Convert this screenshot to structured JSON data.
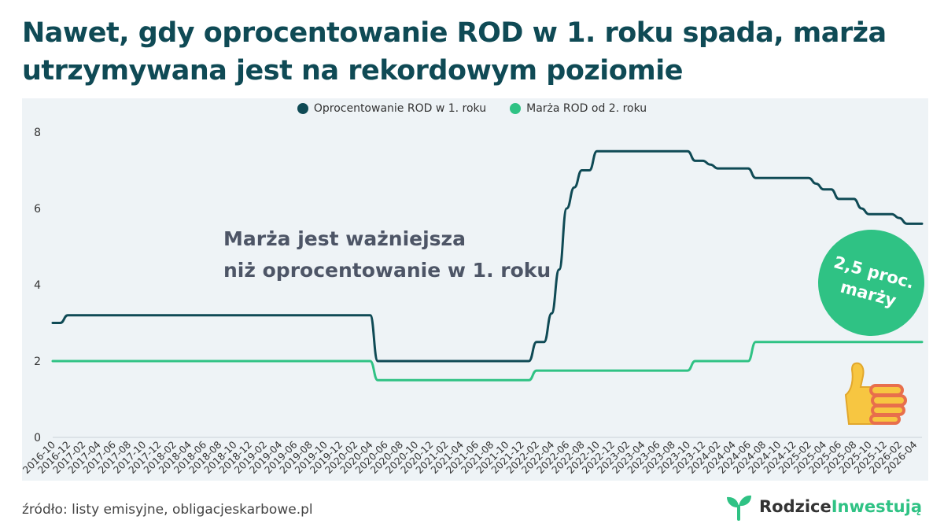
{
  "headline": "Nawet, gdy oprocentowanie ROD w 1. roku spada, marża utrzymywana jest na rekordowym poziomie",
  "annotation_line1": "Marża jest ważniejsza",
  "annotation_line2": "niż oprocentowanie w 1. roku",
  "badge_text": "2,5 proc. marży",
  "source": "źródło: listy emisyjne, obligacjeskarbowe.pl",
  "brand": {
    "part1": "Rodzice",
    "part2": "Inwestują"
  },
  "icons": {
    "thumb": "thumbs-up-icon",
    "logo": "sprout-logo-icon"
  },
  "colors": {
    "rate": "#0f4a55",
    "margin": "#2fc284",
    "panel": "#eef3f6",
    "title": "#0f4a55"
  },
  "chart_data": {
    "type": "line",
    "ylim": [
      0,
      8
    ],
    "yticks": [
      0,
      2,
      4,
      6,
      8
    ],
    "grid": false,
    "legend_position": "top-center",
    "categories": [
      "2016-10",
      "2016-12",
      "2017-02",
      "2017-04",
      "2017-06",
      "2017-08",
      "2017-10",
      "2017-12",
      "2018-02",
      "2018-04",
      "2018-06",
      "2018-08",
      "2018-10",
      "2018-12",
      "2019-02",
      "2019-04",
      "2019-06",
      "2019-08",
      "2019-10",
      "2019-12",
      "2020-02",
      "2020-04",
      "2020-06",
      "2020-08",
      "2020-10",
      "2020-12",
      "2021-02",
      "2021-04",
      "2021-06",
      "2021-08",
      "2021-10",
      "2021-12",
      "2022-02",
      "2022-04",
      "2022-06",
      "2022-08",
      "2022-10",
      "2022-12",
      "2023-02",
      "2023-04",
      "2023-06",
      "2023-08",
      "2023-10",
      "2023-12",
      "2024-02",
      "2024-04",
      "2024-06",
      "2024-08",
      "2024-10",
      "2024-12",
      "2025-02",
      "2025-04",
      "2025-06",
      "2025-08",
      "2025-10",
      "2025-12",
      "2026-02",
      "2026-04"
    ],
    "x_start": "2016-10",
    "x_end": "2026-05",
    "series": [
      {
        "name": "Oprocentowanie ROD w 1. roku",
        "points": [
          [
            "2016-10",
            3.0
          ],
          [
            "2016-11",
            3.0
          ],
          [
            "2016-12",
            3.2
          ],
          [
            "2020-04",
            3.2
          ],
          [
            "2020-05",
            2.0
          ],
          [
            "2022-01",
            2.0
          ],
          [
            "2022-02",
            2.5
          ],
          [
            "2022-03",
            2.5
          ],
          [
            "2022-04",
            3.25
          ],
          [
            "2022-05",
            4.4
          ],
          [
            "2022-06",
            6.0
          ],
          [
            "2022-07",
            6.55
          ],
          [
            "2022-08",
            7.0
          ],
          [
            "2022-09",
            7.0
          ],
          [
            "2022-10",
            7.5
          ],
          [
            "2023-10",
            7.5
          ],
          [
            "2023-11",
            7.25
          ],
          [
            "2023-12",
            7.25
          ],
          [
            "2024-01",
            7.15
          ],
          [
            "2024-02",
            7.05
          ],
          [
            "2024-06",
            7.05
          ],
          [
            "2024-07",
            6.8
          ],
          [
            "2025-02",
            6.8
          ],
          [
            "2025-03",
            6.65
          ],
          [
            "2025-04",
            6.5
          ],
          [
            "2025-05",
            6.5
          ],
          [
            "2025-06",
            6.25
          ],
          [
            "2025-08",
            6.25
          ],
          [
            "2025-09",
            6.0
          ],
          [
            "2025-10",
            5.85
          ],
          [
            "2026-01",
            5.85
          ],
          [
            "2026-02",
            5.75
          ],
          [
            "2026-03",
            5.6
          ],
          [
            "2026-05",
            5.6
          ]
        ]
      },
      {
        "name": "Marża ROD od 2. roku",
        "points": [
          [
            "2016-10",
            2.0
          ],
          [
            "2020-04",
            2.0
          ],
          [
            "2020-05",
            1.5
          ],
          [
            "2022-01",
            1.5
          ],
          [
            "2022-02",
            1.75
          ],
          [
            "2023-10",
            1.75
          ],
          [
            "2023-11",
            2.0
          ],
          [
            "2024-06",
            2.0
          ],
          [
            "2024-07",
            2.5
          ],
          [
            "2026-05",
            2.5
          ]
        ]
      }
    ]
  }
}
